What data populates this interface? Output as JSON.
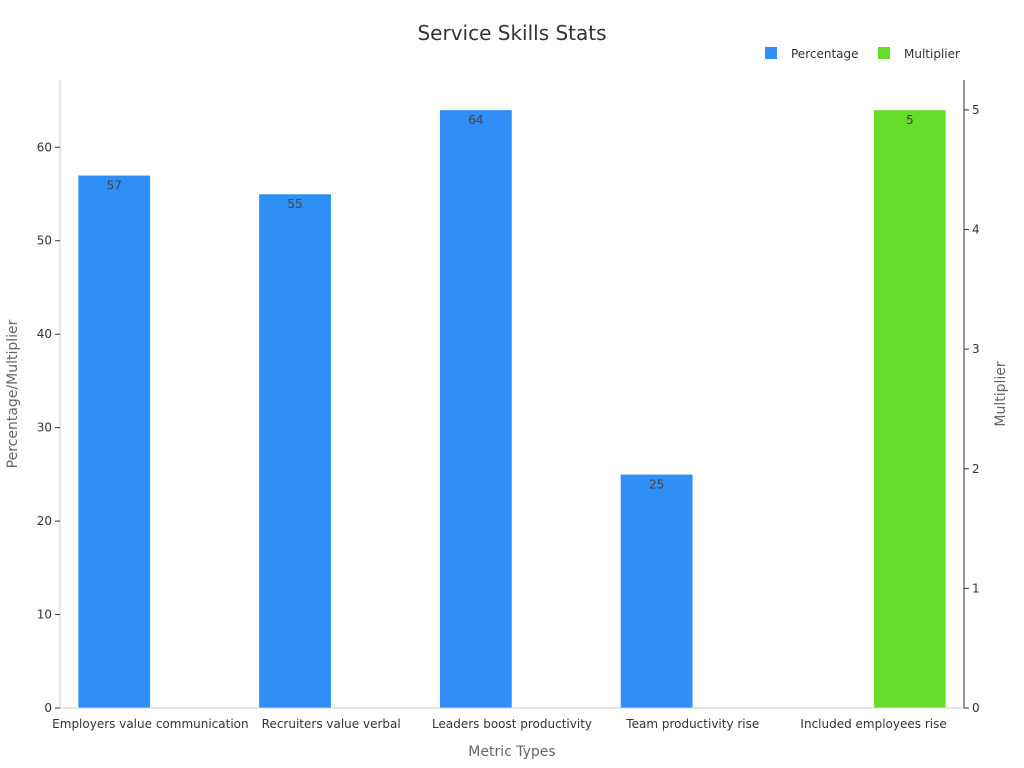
{
  "chart_data": {
    "type": "bar",
    "title": "Service Skills Stats",
    "xlabel": "Metric Types",
    "ylabel": "Percentage/Multiplier",
    "y2label": "Multiplier",
    "categories": [
      "Employers value communication",
      "Recruiters value verbal",
      "Leaders boost productivity",
      "Team productivity rise",
      "Included employees rise"
    ],
    "series": [
      {
        "name": "Percentage",
        "axis": "left",
        "color": "#2f8ff7",
        "values": [
          57,
          55,
          64,
          25,
          null
        ]
      },
      {
        "name": "Multiplier",
        "axis": "right",
        "color": "#66dd2a",
        "values": [
          null,
          null,
          null,
          null,
          5
        ]
      }
    ],
    "ylim": [
      0,
      67.2
    ],
    "y2lim": [
      0,
      5.25
    ],
    "yticks": [
      0,
      10,
      20,
      30,
      40,
      50,
      60
    ],
    "y2ticks": [
      0,
      1,
      2,
      3,
      4,
      5
    ],
    "legend_position": "top-right",
    "grid": false
  }
}
